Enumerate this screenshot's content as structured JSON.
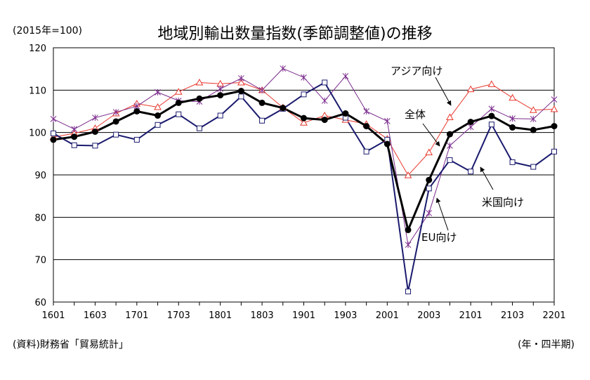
{
  "header": {
    "title": "地域別輸出数量指数(季節調整値)の推移",
    "unit": "(2015年=100)"
  },
  "footer": {
    "source": "(資料)財務省「貿易統計」",
    "x_unit": "(年・四半期)"
  },
  "chart_data": {
    "type": "line",
    "title": "地域別輸出数量指数(季節調整値)の推移",
    "ylabel": "(2015年=100)",
    "xlabel": "(年・四半期)",
    "ylim": [
      60,
      120
    ],
    "yticks": [
      60,
      70,
      80,
      90,
      100,
      110,
      120
    ],
    "grid": true,
    "x": [
      "1601",
      "1602",
      "1603",
      "1604",
      "1701",
      "1702",
      "1703",
      "1704",
      "1801",
      "1802",
      "1803",
      "1804",
      "1901",
      "1902",
      "1903",
      "1904",
      "2001",
      "2002",
      "2003",
      "2004",
      "2101",
      "2102",
      "2103",
      "2104",
      "2201"
    ],
    "x_tick_labels": [
      "1601",
      "1603",
      "1701",
      "1703",
      "1801",
      "1803",
      "1901",
      "1903",
      "2001",
      "2003",
      "2101",
      "2103",
      "2201"
    ],
    "series": [
      {
        "name": "全体",
        "color": "#000000",
        "marker": "filled-circle",
        "values": [
          98.3,
          99.0,
          100.2,
          102.6,
          105.0,
          104.0,
          107.0,
          108.0,
          108.8,
          109.8,
          107.0,
          105.8,
          103.4,
          103.0,
          104.5,
          101.5,
          97.3,
          77.0,
          88.8,
          99.6,
          102.5,
          103.9,
          101.2,
          100.6,
          101.5
        ]
      },
      {
        "name": "アジア向け",
        "color": "#e8382e",
        "marker": "triangle",
        "values": [
          98.9,
          99.8,
          101.0,
          104.5,
          106.8,
          106.0,
          109.6,
          111.8,
          111.5,
          111.8,
          110.0,
          105.9,
          102.3,
          104.0,
          103.0,
          102.0,
          98.5,
          89.9,
          95.3,
          103.6,
          110.2,
          111.4,
          108.2,
          105.3,
          105.5
        ]
      },
      {
        "name": "米国向け",
        "color": "#1a1a6e",
        "marker": "square",
        "values": [
          99.8,
          97.0,
          96.9,
          99.5,
          98.3,
          101.8,
          104.3,
          101.0,
          104.0,
          108.5,
          102.8,
          105.6,
          109.0,
          111.8,
          103.5,
          95.5,
          98.3,
          62.5,
          86.8,
          93.5,
          90.8,
          101.9,
          93.0,
          91.9,
          95.5
        ]
      },
      {
        "name": "EU向け",
        "color": "#7a2b8c",
        "marker": "x",
        "values": [
          103.2,
          100.8,
          103.5,
          104.8,
          106.2,
          109.5,
          107.5,
          107.3,
          110.3,
          112.8,
          110.0,
          115.1,
          113.0,
          107.5,
          113.3,
          105.0,
          102.7,
          73.5,
          81.0,
          96.9,
          101.3,
          105.6,
          103.3,
          103.2,
          107.8
        ]
      }
    ],
    "annotations": [
      "アジア向け",
      "全体",
      "米国向け",
      "EU向け"
    ]
  }
}
